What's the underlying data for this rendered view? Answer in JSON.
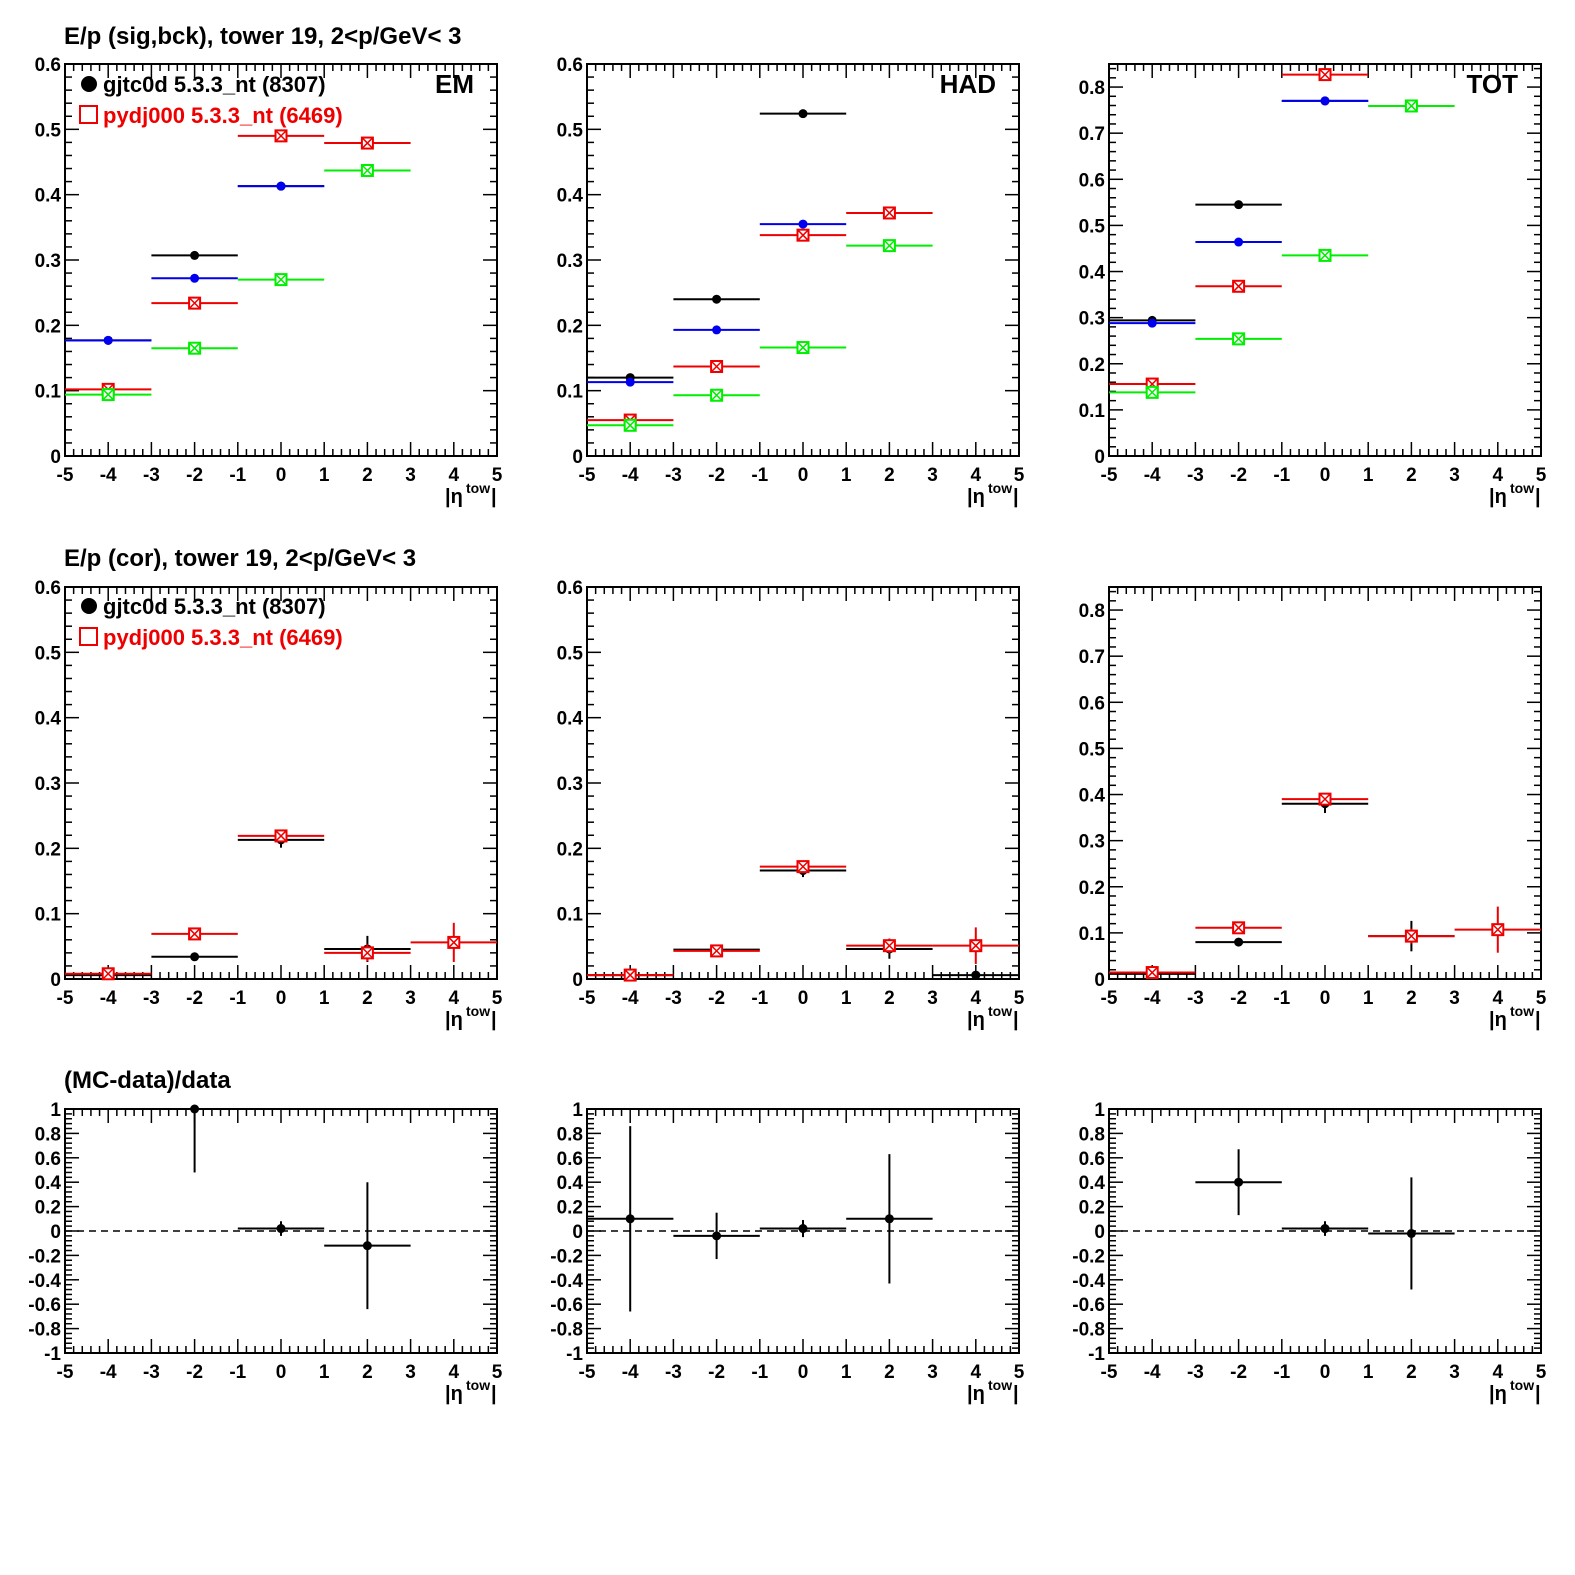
{
  "colors": {
    "black": "#000000",
    "blue": "#0000ee",
    "red": "#ee0000",
    "green": "#00ee00"
  },
  "titles": {
    "row1": "E/p (sig,bck), tower 19,  2<p/GeV< 3",
    "row2": "E/p (cor), tower 19,  2<p/GeV< 3",
    "row3": "(MC-data)/data"
  },
  "legend": [
    {
      "label": "gjtc0d 5.3.3_nt (8307)",
      "marker": "circle",
      "color": "#000000"
    },
    {
      "label": "pydj000 5.3.3_nt (6469)",
      "marker": "open-square",
      "color": "#ee0000"
    }
  ],
  "x_axis": {
    "title_base": "|η",
    "title_sup": "tow",
    "title_end": "|",
    "range": [
      -5,
      5
    ],
    "ticks": [
      "-5",
      "-4",
      "-3",
      "-2",
      "-1",
      "0",
      "1",
      "2",
      "3",
      "4",
      "5"
    ]
  },
  "chart_data": [
    {
      "type": "scatter",
      "row": 1,
      "col": 1,
      "label": "EM",
      "ylim": [
        0,
        0.6
      ],
      "yticks": [
        "0",
        "0.1",
        "0.2",
        "0.3",
        "0.4",
        "0.5",
        "0.6"
      ],
      "series": [
        {
          "color": "#000000",
          "marker": "circle",
          "points": [
            {
              "x": -4,
              "y": 0.177,
              "xerr": 1
            },
            {
              "x": -2,
              "y": 0.307,
              "xerr": 1
            },
            {
              "x": 0,
              "y": 0.413,
              "xerr": 1
            }
          ]
        },
        {
          "color": "#0000ee",
          "marker": "circle",
          "points": [
            {
              "x": -4,
              "y": 0.177,
              "xerr": 1
            },
            {
              "x": -2,
              "y": 0.272,
              "xerr": 1
            },
            {
              "x": 0,
              "y": 0.413,
              "xerr": 1
            }
          ]
        },
        {
          "color": "#ee0000",
          "marker": "xsquare",
          "points": [
            {
              "x": -4,
              "y": 0.102,
              "xerr": 1
            },
            {
              "x": -2,
              "y": 0.234,
              "xerr": 1
            },
            {
              "x": 0,
              "y": 0.49,
              "xerr": 1
            },
            {
              "x": 2,
              "y": 0.479,
              "xerr": 1
            }
          ]
        },
        {
          "color": "#00ee00",
          "marker": "xsquare",
          "points": [
            {
              "x": -4,
              "y": 0.094,
              "xerr": 1
            },
            {
              "x": -2,
              "y": 0.165,
              "xerr": 1
            },
            {
              "x": 0,
              "y": 0.27,
              "xerr": 1
            },
            {
              "x": 2,
              "y": 0.437,
              "xerr": 1
            }
          ]
        }
      ]
    },
    {
      "type": "scatter",
      "row": 1,
      "col": 2,
      "label": "HAD",
      "ylim": [
        0,
        0.6
      ],
      "yticks": [
        "0",
        "0.1",
        "0.2",
        "0.3",
        "0.4",
        "0.5",
        "0.6"
      ],
      "series": [
        {
          "color": "#000000",
          "marker": "circle",
          "points": [
            {
              "x": -4,
              "y": 0.12,
              "xerr": 1
            },
            {
              "x": -2,
              "y": 0.24,
              "xerr": 1
            },
            {
              "x": 0,
              "y": 0.524,
              "xerr": 1
            }
          ]
        },
        {
          "color": "#0000ee",
          "marker": "circle",
          "points": [
            {
              "x": -4,
              "y": 0.113,
              "xerr": 1
            },
            {
              "x": -2,
              "y": 0.193,
              "xerr": 1
            },
            {
              "x": 0,
              "y": 0.355,
              "xerr": 1
            }
          ]
        },
        {
          "color": "#ee0000",
          "marker": "xsquare",
          "points": [
            {
              "x": -4,
              "y": 0.055,
              "xerr": 1
            },
            {
              "x": -2,
              "y": 0.137,
              "xerr": 1
            },
            {
              "x": 0,
              "y": 0.338,
              "xerr": 1
            },
            {
              "x": 2,
              "y": 0.372,
              "xerr": 1
            }
          ]
        },
        {
          "color": "#00ee00",
          "marker": "xsquare",
          "points": [
            {
              "x": -4,
              "y": 0.047,
              "xerr": 1
            },
            {
              "x": -2,
              "y": 0.093,
              "xerr": 1
            },
            {
              "x": 0,
              "y": 0.166,
              "xerr": 1
            },
            {
              "x": 2,
              "y": 0.322,
              "xerr": 1
            }
          ]
        }
      ]
    },
    {
      "type": "scatter",
      "row": 1,
      "col": 3,
      "label": "TOT",
      "ylim": [
        0,
        0.85
      ],
      "yticks": [
        "0",
        "0.1",
        "0.2",
        "0.3",
        "0.4",
        "0.5",
        "0.6",
        "0.7",
        "0.8"
      ],
      "series": [
        {
          "color": "#000000",
          "marker": "circle",
          "points": [
            {
              "x": -4,
              "y": 0.294,
              "xerr": 1
            },
            {
              "x": -2,
              "y": 0.545,
              "xerr": 1
            },
            {
              "x": 0,
              "y": 0.77,
              "xerr": 1
            }
          ]
        },
        {
          "color": "#0000ee",
          "marker": "circle",
          "points": [
            {
              "x": -4,
              "y": 0.288,
              "xerr": 1
            },
            {
              "x": -2,
              "y": 0.464,
              "xerr": 1
            },
            {
              "x": 0,
              "y": 0.77,
              "xerr": 1
            }
          ]
        },
        {
          "color": "#ee0000",
          "marker": "xsquare",
          "points": [
            {
              "x": -4,
              "y": 0.156,
              "xerr": 1
            },
            {
              "x": -2,
              "y": 0.368,
              "xerr": 1
            },
            {
              "x": 0,
              "y": 0.827,
              "xerr": 1
            }
          ]
        },
        {
          "color": "#00ee00",
          "marker": "xsquare",
          "points": [
            {
              "x": -4,
              "y": 0.138,
              "xerr": 1
            },
            {
              "x": -2,
              "y": 0.254,
              "xerr": 1
            },
            {
              "x": 0,
              "y": 0.435,
              "xerr": 1
            },
            {
              "x": 2,
              "y": 0.759,
              "xerr": 1
            }
          ]
        }
      ]
    },
    {
      "type": "scatter",
      "row": 2,
      "col": 1,
      "label": "",
      "ylim": [
        0,
        0.6
      ],
      "yticks": [
        "0",
        "0.1",
        "0.2",
        "0.3",
        "0.4",
        "0.5",
        "0.6"
      ],
      "series": [
        {
          "color": "#000000",
          "marker": "circle",
          "points": [
            {
              "x": -4,
              "y": 0.006,
              "xerr": 1,
              "yerr": 0.003
            },
            {
              "x": -2,
              "y": 0.034,
              "xerr": 1,
              "yerr": 0.003
            },
            {
              "x": 0,
              "y": 0.213,
              "xerr": 1,
              "yerr": 0.012
            },
            {
              "x": 2,
              "y": 0.046,
              "xerr": 1,
              "yerr": 0.02
            }
          ]
        },
        {
          "color": "#ee0000",
          "marker": "xsquare",
          "points": [
            {
              "x": -4,
              "y": 0.008,
              "xerr": 1,
              "yerr": 0.003
            },
            {
              "x": -2,
              "y": 0.069,
              "xerr": 1,
              "yerr": 0.004
            },
            {
              "x": 0,
              "y": 0.219,
              "xerr": 1,
              "yerr": 0.006
            },
            {
              "x": 2,
              "y": 0.04,
              "xerr": 1,
              "yerr": 0.013
            },
            {
              "x": 4,
              "y": 0.056,
              "xerr": 1,
              "yerr": 0.03
            }
          ]
        }
      ]
    },
    {
      "type": "scatter",
      "row": 2,
      "col": 2,
      "label": "",
      "ylim": [
        0,
        0.6
      ],
      "yticks": [
        "0",
        "0.1",
        "0.2",
        "0.3",
        "0.4",
        "0.5",
        "0.6"
      ],
      "series": [
        {
          "color": "#000000",
          "marker": "circle",
          "points": [
            {
              "x": -4,
              "y": 0.006,
              "xerr": 1,
              "yerr": 0.003
            },
            {
              "x": -2,
              "y": 0.045,
              "xerr": 1,
              "yerr": 0.004
            },
            {
              "x": 0,
              "y": 0.166,
              "xerr": 1,
              "yerr": 0.01
            },
            {
              "x": 2,
              "y": 0.046,
              "xerr": 1,
              "yerr": 0.015
            },
            {
              "x": 4,
              "y": 0.006,
              "xerr": 1,
              "yerr": 0.004
            }
          ]
        },
        {
          "color": "#ee0000",
          "marker": "xsquare",
          "points": [
            {
              "x": -4,
              "y": 0.006,
              "xerr": 1,
              "yerr": 0.003
            },
            {
              "x": -2,
              "y": 0.043,
              "xerr": 1,
              "yerr": 0.004
            },
            {
              "x": 0,
              "y": 0.172,
              "xerr": 1,
              "yerr": 0.006
            },
            {
              "x": 2,
              "y": 0.051,
              "xerr": 1,
              "yerr": 0.011
            },
            {
              "x": 4,
              "y": 0.051,
              "xerr": 1,
              "yerr": 0.028
            }
          ]
        }
      ]
    },
    {
      "type": "scatter",
      "row": 2,
      "col": 3,
      "label": "",
      "ylim": [
        0,
        0.85
      ],
      "yticks": [
        "0",
        "0.1",
        "0.2",
        "0.3",
        "0.4",
        "0.5",
        "0.6",
        "0.7",
        "0.8"
      ],
      "series": [
        {
          "color": "#000000",
          "marker": "circle",
          "points": [
            {
              "x": -4,
              "y": 0.011,
              "xerr": 1,
              "yerr": 0.004
            },
            {
              "x": -2,
              "y": 0.08,
              "xerr": 1,
              "yerr": 0.005
            },
            {
              "x": 0,
              "y": 0.38,
              "xerr": 1,
              "yerr": 0.02
            },
            {
              "x": 2,
              "y": 0.093,
              "xerr": 1,
              "yerr": 0.033
            }
          ]
        },
        {
          "color": "#ee0000",
          "marker": "xsquare",
          "points": [
            {
              "x": -4,
              "y": 0.014,
              "xerr": 1,
              "yerr": 0.004
            },
            {
              "x": -2,
              "y": 0.111,
              "xerr": 1,
              "yerr": 0.005
            },
            {
              "x": 0,
              "y": 0.39,
              "xerr": 1,
              "yerr": 0.008
            },
            {
              "x": 2,
              "y": 0.093,
              "xerr": 1,
              "yerr": 0.016
            },
            {
              "x": 4,
              "y": 0.107,
              "xerr": 1,
              "yerr": 0.05
            }
          ]
        }
      ]
    },
    {
      "type": "scatter",
      "row": 3,
      "col": 1,
      "label": "",
      "ylim": [
        -1,
        1
      ],
      "yticks": [
        "-1",
        "-0.8",
        "-0.6",
        "-0.4",
        "-0.2",
        "0",
        "0.2",
        "0.4",
        "0.6",
        "0.8",
        "1"
      ],
      "zero_line": true,
      "series": [
        {
          "color": "#000000",
          "marker": "circle",
          "points": [
            {
              "x": -2,
              "y": 1.0,
              "xerr": 1,
              "yerr_low": 0.52,
              "yerr_high": 0.0
            },
            {
              "x": 0,
              "y": 0.02,
              "xerr": 1,
              "yerr": 0.06
            },
            {
              "x": 2,
              "y": -0.12,
              "xerr": 1,
              "yerr": 0.52
            }
          ]
        }
      ]
    },
    {
      "type": "scatter",
      "row": 3,
      "col": 2,
      "label": "",
      "ylim": [
        -1,
        1
      ],
      "yticks": [
        "-1",
        "-0.8",
        "-0.6",
        "-0.4",
        "-0.2",
        "0",
        "0.2",
        "0.4",
        "0.6",
        "0.8",
        "1"
      ],
      "zero_line": true,
      "series": [
        {
          "color": "#000000",
          "marker": "circle",
          "points": [
            {
              "x": -4,
              "y": 0.1,
              "xerr": 1,
              "yerr": 0.76
            },
            {
              "x": -2,
              "y": -0.04,
              "xerr": 1,
              "yerr": 0.19
            },
            {
              "x": 0,
              "y": 0.02,
              "xerr": 1,
              "yerr": 0.07
            },
            {
              "x": 2,
              "y": 0.1,
              "xerr": 1,
              "yerr": 0.53
            }
          ]
        }
      ]
    },
    {
      "type": "scatter",
      "row": 3,
      "col": 3,
      "label": "",
      "ylim": [
        -1,
        1
      ],
      "yticks": [
        "-1",
        "-0.8",
        "-0.6",
        "-0.4",
        "-0.2",
        "0",
        "0.2",
        "0.4",
        "0.6",
        "0.8",
        "1"
      ],
      "zero_line": true,
      "series": [
        {
          "color": "#000000",
          "marker": "circle",
          "points": [
            {
              "x": -2,
              "y": 0.4,
              "xerr": 1,
              "yerr": 0.27
            },
            {
              "x": 0,
              "y": 0.02,
              "xerr": 1,
              "yerr": 0.06
            },
            {
              "x": 2,
              "y": -0.02,
              "xerr": 1,
              "yerr": 0.46
            }
          ]
        }
      ]
    }
  ]
}
